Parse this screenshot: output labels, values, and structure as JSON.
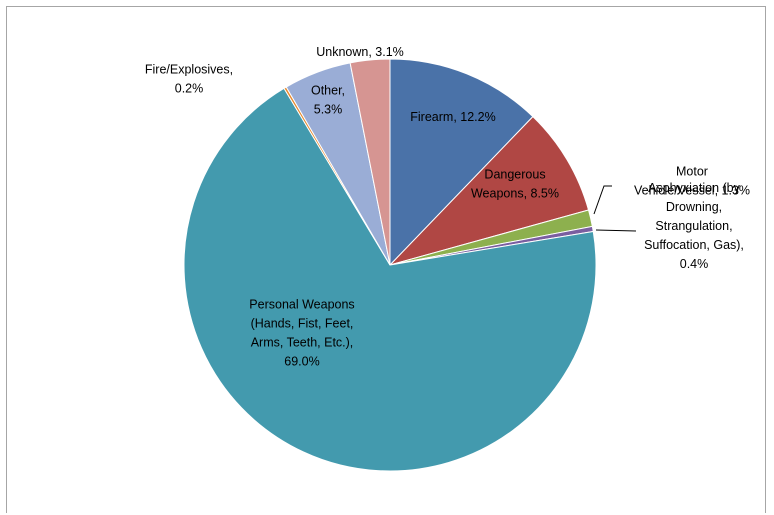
{
  "chart_data": {
    "type": "pie",
    "title": "",
    "start_angle_deg": 0,
    "direction": "clockwise",
    "slices": [
      {
        "label_lines": [
          "Firearm, 12.2%"
        ],
        "value": 12.2,
        "color": "#4a72a8"
      },
      {
        "label_lines": [
          "Dangerous",
          "Weapons, 8.5%"
        ],
        "value": 8.5,
        "color": "#b04744"
      },
      {
        "label_lines": [
          "Motor",
          "Vehicle/Vessel, 1.3%"
        ],
        "value": 1.3,
        "color": "#8db04e"
      },
      {
        "label_lines": [
          "Asphyxiation (by",
          "Drowning,",
          "Strangulation,",
          "Suffocation, Gas),",
          "0.4%"
        ],
        "value": 0.4,
        "color": "#7a5ea0"
      },
      {
        "label_lines": [
          "Personal Weapons",
          "(Hands, Fist, Feet,",
          "Arms, Teeth, Etc.),",
          "69.0%"
        ],
        "value": 69.0,
        "color": "#439aae"
      },
      {
        "label_lines": [
          "Fire/Explosives,",
          "0.2%"
        ],
        "value": 0.2,
        "color": "#e68a2e"
      },
      {
        "label_lines": [
          "Other,",
          "5.3%"
        ],
        "value": 5.3,
        "color": "#9aadd6"
      },
      {
        "label_lines": [
          "Unknown, 3.1%"
        ],
        "value": 3.1,
        "color": "#d69592"
      }
    ]
  }
}
